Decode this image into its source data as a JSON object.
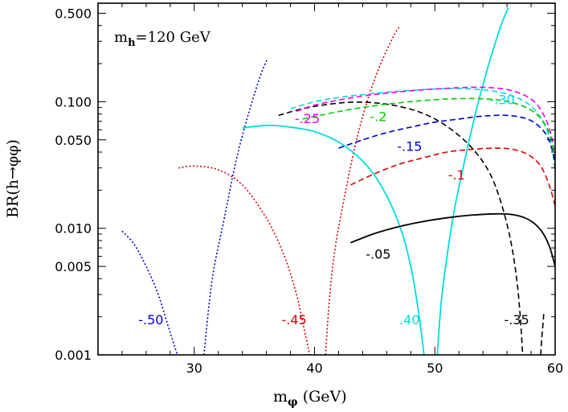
{
  "chart_data": {
    "type": "line",
    "title": "",
    "annotation_main": "m",
    "annotation_sub": "h",
    "annotation_rest": "=120 GeV",
    "xlabel": "m",
    "xlabel_sub": "φ",
    "xlabel_unit": "(GeV)",
    "ylabel": "BR(h→φφ)",
    "xlim": [
      22,
      60
    ],
    "ylim": [
      0.001,
      0.6
    ],
    "yscale": "log",
    "xticks": [
      30,
      40,
      50,
      60
    ],
    "xtick_labels": [
      "30",
      "40",
      "50",
      "60"
    ],
    "yticks": [
      0.001,
      0.005,
      0.01,
      0.05,
      0.1,
      0.5
    ],
    "ytick_labels": [
      "0.001",
      "0.005",
      "0.010",
      "0.050",
      "0.100",
      "0.500"
    ],
    "series": [
      {
        "label": "-.50",
        "color": "#0000cc",
        "style": "dotted",
        "branches": [
          {
            "x": [
              24,
              25,
              26,
              27,
              28,
              28.6
            ],
            "y": [
              0.0095,
              0.0075,
              0.005,
              0.003,
              0.0015,
              0.001
            ]
          },
          {
            "x": [
              30.8,
              31.5,
              32.5,
              33.5,
              34.5,
              35.5,
              36.1
            ],
            "y": [
              0.001,
              0.004,
              0.012,
              0.035,
              0.08,
              0.16,
              0.22
            ]
          }
        ]
      },
      {
        "label": "-.45",
        "color": "#dd0000",
        "style": "dotted",
        "branches": [
          {
            "x": [
              28.7,
              30,
              32,
              34,
              36,
              37.5,
              38.5,
              39.2,
              39.6
            ],
            "y": [
              0.03,
              0.031,
              0.029,
              0.022,
              0.012,
              0.006,
              0.003,
              0.0015,
              0.001
            ]
          },
          {
            "x": [
              40.9,
              41.5,
              42.5,
              43.5,
              44.5,
              45.5,
              46.5,
              47.1
            ],
            "y": [
              0.001,
              0.005,
              0.018,
              0.05,
              0.11,
              0.2,
              0.32,
              0.4
            ]
          }
        ]
      },
      {
        "label": ".40",
        "color": "#00dddd",
        "style": "solid",
        "branches": [
          {
            "x": [
              34,
              36,
              38,
              40,
              42,
              44,
              45.5,
              47,
              48,
              48.7,
              49.1
            ],
            "y": [
              0.062,
              0.065,
              0.063,
              0.058,
              0.048,
              0.034,
              0.022,
              0.011,
              0.005,
              0.002,
              0.001
            ]
          },
          {
            "x": [
              50.2,
              50.6,
              51.5,
              52.5,
              53.5,
              54.5,
              55.5,
              56.1
            ],
            "y": [
              0.001,
              0.003,
              0.012,
              0.035,
              0.09,
              0.2,
              0.4,
              0.55
            ]
          }
        ]
      },
      {
        "label": "-.35",
        "color": "#000000",
        "style": "dashed",
        "branches": [
          {
            "x": [
              37,
              39,
              41,
              43,
              45,
              47,
              49,
              51,
              53,
              54.5,
              55.5,
              56.3,
              56.8,
              57.1,
              57.3
            ],
            "y": [
              0.078,
              0.088,
              0.095,
              0.099,
              0.098,
              0.092,
              0.081,
              0.064,
              0.044,
              0.028,
              0.016,
              0.008,
              0.004,
              0.002,
              0.001
            ]
          },
          {
            "x": [
              58.8,
              58.9,
              59.0,
              59.05
            ],
            "y": [
              0.001,
              0.0014,
              0.0018,
              0.0021
            ]
          }
        ]
      },
      {
        "label": "-.30",
        "color": "#00dddd",
        "style": "dashed",
        "branches": [
          {
            "x": [
              38,
              40,
              42,
              44,
              46,
              48,
              50,
              52,
              54,
              56,
              57.5,
              58.5,
              59.3,
              59.8,
              60
            ],
            "y": [
              0.088,
              0.1,
              0.108,
              0.114,
              0.119,
              0.123,
              0.126,
              0.127,
              0.124,
              0.115,
              0.1,
              0.082,
              0.06,
              0.04,
              0.028
            ]
          }
        ]
      },
      {
        "label": "-.25",
        "color": "#ee00ee",
        "style": "dashed",
        "branches": [
          {
            "x": [
              38.5,
              40,
              42,
              44,
              46,
              48,
              50,
              52,
              54,
              56,
              57.5,
              58.5,
              59.3,
              59.8,
              60
            ],
            "y": [
              0.084,
              0.094,
              0.103,
              0.111,
              0.117,
              0.122,
              0.126,
              0.129,
              0.13,
              0.125,
              0.112,
              0.095,
              0.07,
              0.048,
              0.033
            ]
          }
        ]
      },
      {
        "label": "-.2",
        "color": "#00cc00",
        "style": "dashed",
        "branches": [
          {
            "x": [
              39,
              41,
              43,
              45,
              47,
              49,
              51,
              53,
              55,
              56.5,
              57.8,
              58.8,
              59.5,
              59.9,
              60
            ],
            "y": [
              0.073,
              0.08,
              0.087,
              0.093,
              0.098,
              0.102,
              0.105,
              0.106,
              0.104,
              0.098,
              0.088,
              0.074,
              0.057,
              0.04,
              0.03
            ]
          }
        ]
      },
      {
        "label": "-.15",
        "color": "#0000cc",
        "style": "dashed",
        "branches": [
          {
            "x": [
              42,
              44,
              46,
              48,
              50,
              52,
              54,
              56,
              57.5,
              58.5,
              59.3,
              59.8,
              60
            ],
            "y": [
              0.043,
              0.05,
              0.057,
              0.063,
              0.069,
              0.073,
              0.077,
              0.078,
              0.074,
              0.066,
              0.054,
              0.04,
              0.03
            ]
          }
        ]
      },
      {
        "label": "-.1",
        "color": "#dd0000",
        "style": "dashed",
        "branches": [
          {
            "x": [
              43,
              45,
              47,
              49,
              51,
              53,
              55,
              56.5,
              57.8,
              58.8,
              59.5,
              60
            ],
            "y": [
              0.022,
              0.027,
              0.032,
              0.036,
              0.04,
              0.042,
              0.043,
              0.042,
              0.038,
              0.031,
              0.022,
              0.015
            ]
          }
        ]
      },
      {
        "label": "-.05",
        "color": "#000000",
        "style": "solid",
        "branches": [
          {
            "x": [
              43,
              45,
              47,
              49,
              51,
              53,
              55,
              56.5,
              57.8,
              58.8,
              59.5,
              60
            ],
            "y": [
              0.0077,
              0.0091,
              0.0103,
              0.0113,
              0.0121,
              0.0127,
              0.013,
              0.0128,
              0.0117,
              0.0097,
              0.0073,
              0.005
            ]
          }
        ]
      }
    ],
    "labels": [
      {
        "text": "-.50",
        "color": "#0000cc"
      },
      {
        "text": "-.45",
        "color": "#dd0000"
      },
      {
        "text": ".40",
        "color": "#00dddd"
      },
      {
        "text": "-.35",
        "color": "#000000"
      },
      {
        "text": "-.30",
        "color": "#00dddd"
      },
      {
        "text": "-.25",
        "color": "#ee00ee"
      },
      {
        "text": "-.2",
        "color": "#00cc00"
      },
      {
        "text": "-.15",
        "color": "#0000cc"
      },
      {
        "text": "-.1",
        "color": "#dd0000"
      },
      {
        "text": "-.05",
        "color": "#000000"
      }
    ]
  }
}
